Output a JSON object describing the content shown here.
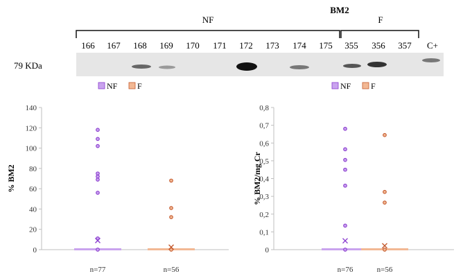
{
  "blot": {
    "title": "BM2",
    "group_nf": "NF",
    "group_f": "F",
    "mw_label": "79 KDa",
    "lanes": [
      "166",
      "167",
      "168",
      "169",
      "170",
      "171",
      "172",
      "173",
      "174",
      "175",
      "355",
      "356",
      "357",
      "C+"
    ]
  },
  "chart_data": [
    {
      "type": "scatter",
      "ylabel": "% BM2",
      "ylim": [
        0,
        140
      ],
      "yticks": [
        "0",
        "20",
        "40",
        "60",
        "80",
        "100",
        "120",
        "140"
      ],
      "legend": [
        "NF",
        "F"
      ],
      "categories_n": [
        "n=77",
        "n=56"
      ],
      "series": [
        {
          "name": "NF",
          "color": "#8a3ccf",
          "points": [
            118,
            109,
            102,
            75,
            72,
            69,
            56,
            11,
            0
          ],
          "mean": 9
        },
        {
          "name": "F",
          "color": "#c45a2e",
          "points": [
            68,
            41,
            32,
            0
          ],
          "mean": 2.5
        }
      ]
    },
    {
      "type": "scatter",
      "ylabel": "% BM2/mg Cr",
      "ylim": [
        0,
        0.8
      ],
      "yticks": [
        "0",
        "0,1",
        "0,2",
        "0,3",
        "0,4",
        "0,5",
        "0,6",
        "0,7",
        "0,8"
      ],
      "legend": [
        "NF",
        "F"
      ],
      "categories_n": [
        "n=76",
        "n=56"
      ],
      "series": [
        {
          "name": "NF",
          "color": "#8a3ccf",
          "points": [
            0.68,
            0.565,
            0.505,
            0.45,
            0.36,
            0.135,
            0
          ],
          "mean": 0.05
        },
        {
          "name": "F",
          "color": "#c45a2e",
          "points": [
            0.645,
            0.325,
            0.265,
            0
          ],
          "mean": 0.022
        }
      ]
    }
  ],
  "colors": {
    "nf_fill": "#c9a3ee",
    "nf_edge": "#8a3ccf",
    "f_fill": "#f2b894",
    "f_edge": "#c45a2e",
    "axis": "#bfbfbf"
  }
}
